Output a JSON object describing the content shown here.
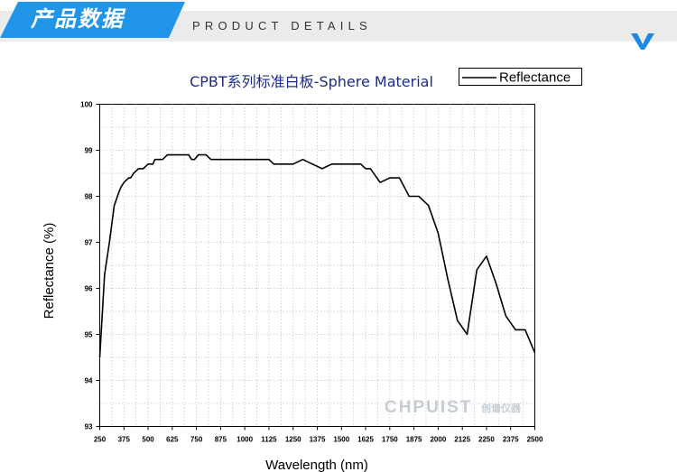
{
  "header": {
    "title": "产品数据",
    "subtitle": "PRODUCT DETAILS",
    "accent": "#2196e8",
    "check_color": "#1e88e5"
  },
  "watermark": {
    "brand": "CHPUIST",
    "brand_cn": "创谱仪器",
    "color": "#c5ccd4"
  },
  "chart_data": {
    "type": "line",
    "title": "CPBT系列标准白板-Sphere Material",
    "xlabel": "Wavelength (nm)",
    "ylabel": "Reflectance (%)",
    "xlim": [
      250,
      2500
    ],
    "ylim": [
      93,
      100
    ],
    "x_ticks": [
      250,
      375,
      500,
      625,
      750,
      875,
      1000,
      1125,
      1250,
      1375,
      1500,
      1625,
      1750,
      1875,
      2000,
      2125,
      2250,
      2375,
      2500
    ],
    "x_tick_labels": [
      "250",
      "375",
      "500",
      "625",
      "750",
      "875",
      "1000",
      "1125",
      "1250",
      "1375",
      "1500",
      "1625",
      "1750",
      "1875",
      "2000",
      "2125",
      "2250",
      "2375",
      "2500"
    ],
    "y_ticks": [
      93,
      94,
      95,
      96,
      97,
      98,
      99,
      100
    ],
    "y_tick_labels": [
      "93",
      "94",
      "95",
      "96",
      "97",
      "98",
      "99",
      "100"
    ],
    "grid": true,
    "legend": "top-right",
    "series": [
      {
        "name": "Reflectance",
        "color": "#000000",
        "x": [
          250,
          275,
          300,
          325,
          350,
          360,
          375,
          400,
          410,
          425,
          450,
          460,
          475,
          500,
          525,
          535,
          550,
          575,
          600,
          625,
          650,
          675,
          700,
          710,
          725,
          740,
          760,
          775,
          800,
          825,
          850,
          875,
          900,
          950,
          1000,
          1050,
          1100,
          1125,
          1150,
          1175,
          1200,
          1250,
          1300,
          1350,
          1400,
          1450,
          1500,
          1550,
          1600,
          1625,
          1650,
          1700,
          1750,
          1800,
          1850,
          1900,
          1950,
          2000,
          2050,
          2100,
          2150,
          2200,
          2250,
          2300,
          2350,
          2400,
          2450,
          2500
        ],
        "y": [
          94.5,
          96.3,
          97.0,
          97.8,
          98.1,
          98.2,
          98.3,
          98.4,
          98.4,
          98.5,
          98.6,
          98.6,
          98.6,
          98.7,
          98.7,
          98.8,
          98.8,
          98.8,
          98.9,
          98.9,
          98.9,
          98.9,
          98.9,
          98.9,
          98.8,
          98.8,
          98.9,
          98.9,
          98.9,
          98.8,
          98.8,
          98.8,
          98.8,
          98.8,
          98.8,
          98.8,
          98.8,
          98.8,
          98.7,
          98.7,
          98.7,
          98.7,
          98.8,
          98.7,
          98.6,
          98.7,
          98.7,
          98.7,
          98.7,
          98.6,
          98.6,
          98.3,
          98.4,
          98.4,
          98.0,
          98.0,
          97.8,
          97.2,
          96.2,
          95.3,
          95.0,
          96.4,
          96.7,
          96.1,
          95.4,
          95.1,
          95.1,
          94.6
        ]
      }
    ]
  }
}
